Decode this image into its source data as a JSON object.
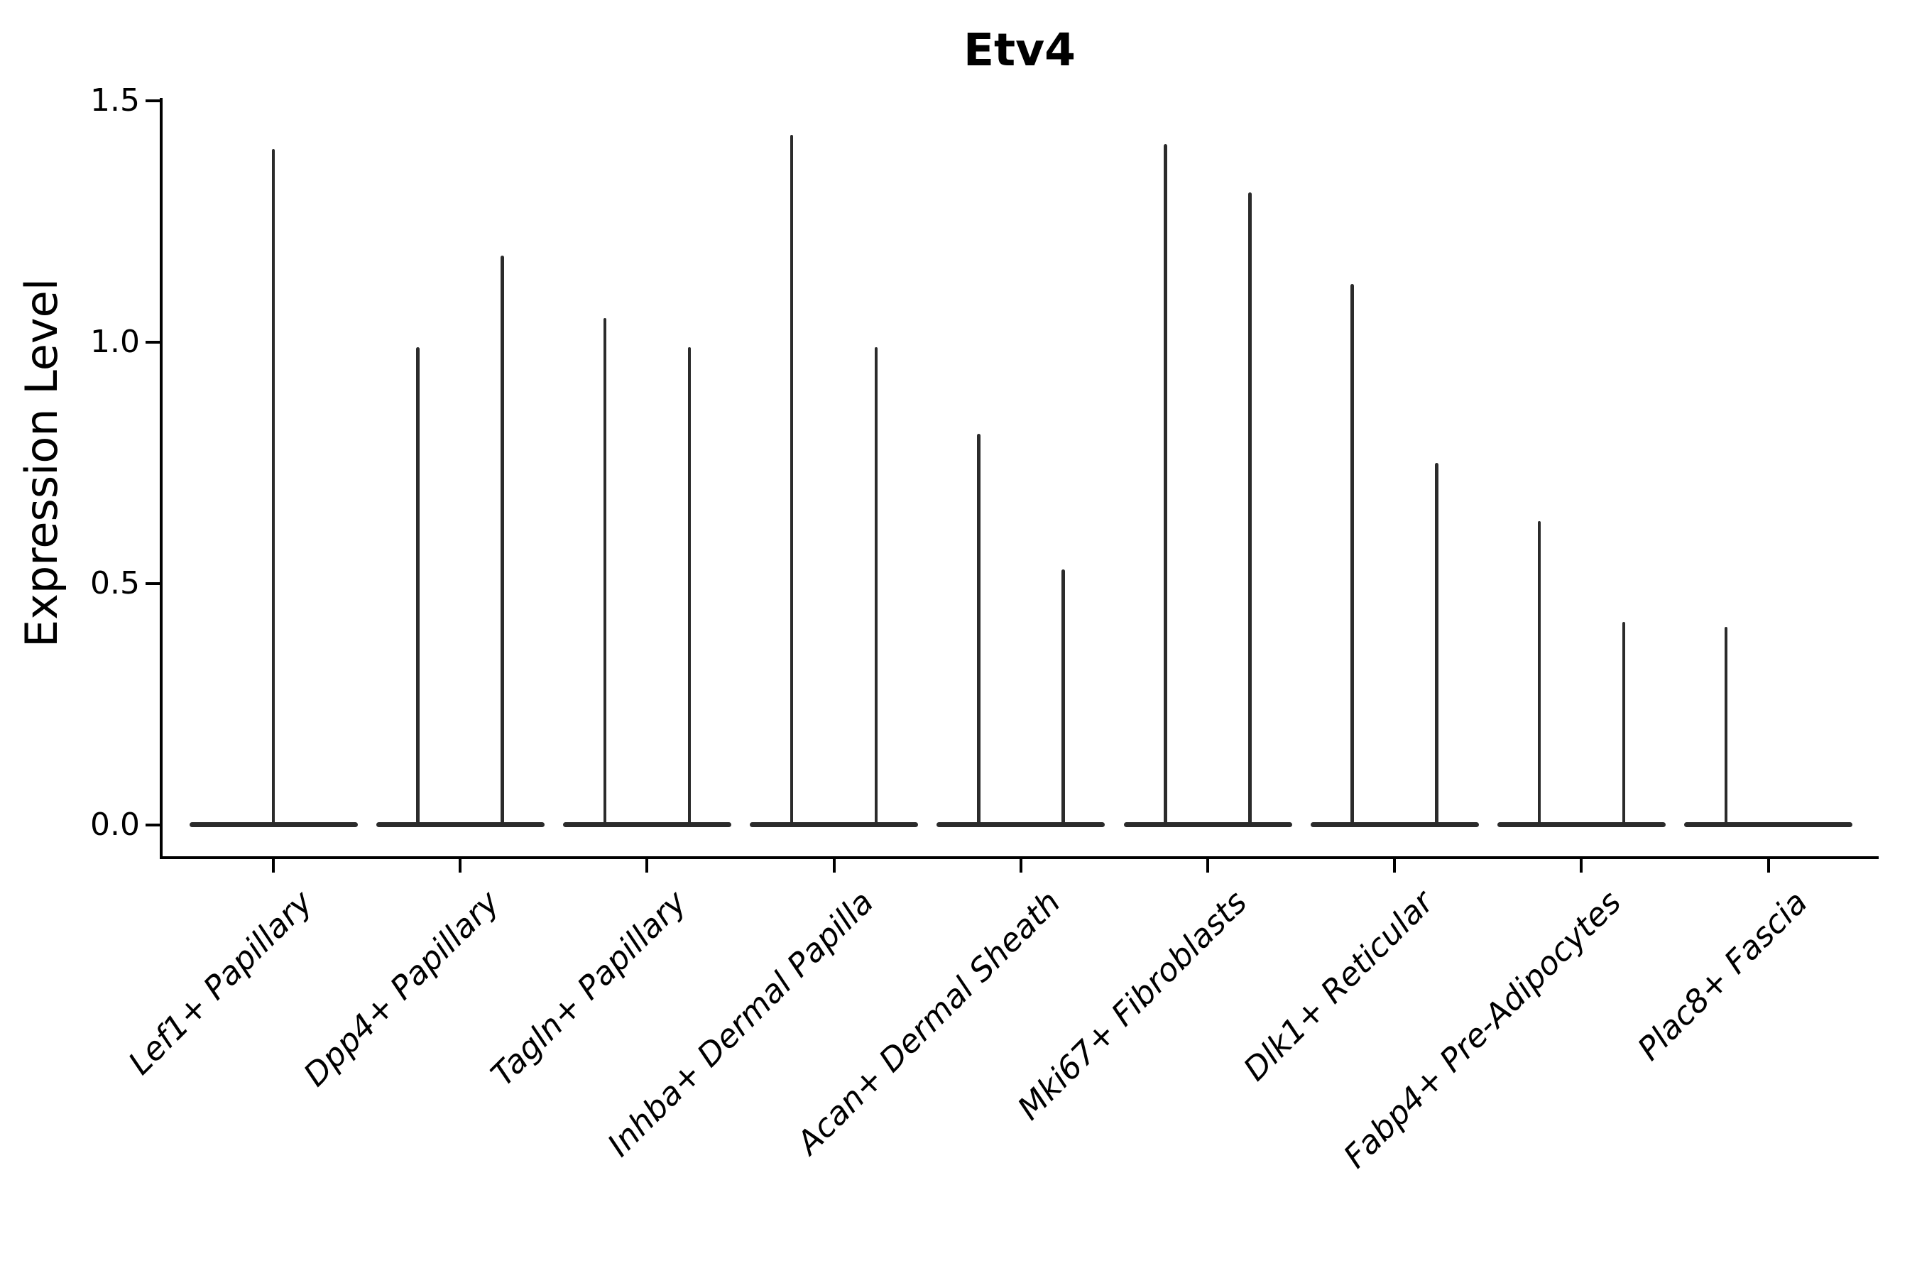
{
  "title": "Etv4",
  "y_axis": {
    "label": "Expression Level",
    "tick_labels": [
      "0.0",
      "0.5",
      "1.0",
      "1.5"
    ],
    "tick_values": [
      0.0,
      0.5,
      1.0,
      1.5
    ]
  },
  "colors": {
    "violin": "#2b2b2b",
    "axis": "#000000",
    "text": "#000000",
    "background": "#ffffff"
  },
  "chart_data": {
    "type": "violin",
    "title": "Etv4",
    "xlabel": "",
    "ylabel": "Expression Level",
    "ylim": [
      0,
      1.5
    ],
    "yticks": [
      0.0,
      0.5,
      1.0,
      1.5
    ],
    "grid": false,
    "legend": "none",
    "note": "Split violin plot (two groups per cluster). Every violin is collapsed flat at expression 0 with a thin density spike rising to its maximum expression value. Lef1+ Papillary shows one centered spike; Plac8+ Fascia shows only the left-group spike.",
    "categories": [
      {
        "label": "Lef1+ Papillary",
        "violins": [
          {
            "position": "center",
            "max": 1.4
          }
        ]
      },
      {
        "label": "Dpp4+ Papillary",
        "violins": [
          {
            "position": "left",
            "max": 0.99
          },
          {
            "position": "right",
            "max": 1.18
          }
        ]
      },
      {
        "label": "Tagln+ Papillary",
        "violins": [
          {
            "position": "left",
            "max": 1.05
          },
          {
            "position": "right",
            "max": 0.99
          }
        ]
      },
      {
        "label": "Inhba+ Dermal Papilla",
        "violins": [
          {
            "position": "left",
            "max": 1.43
          },
          {
            "position": "right",
            "max": 0.99
          }
        ]
      },
      {
        "label": "Acan+ Dermal Sheath",
        "violins": [
          {
            "position": "left",
            "max": 0.81
          },
          {
            "position": "right",
            "max": 0.53
          }
        ]
      },
      {
        "label": "Mki67+ Fibroblasts",
        "violins": [
          {
            "position": "left",
            "max": 1.41
          },
          {
            "position": "right",
            "max": 1.31
          }
        ]
      },
      {
        "label": "Dlk1+ Reticular",
        "violins": [
          {
            "position": "left",
            "max": 1.12
          },
          {
            "position": "right",
            "max": 0.75
          }
        ]
      },
      {
        "label": "Fabp4+ Pre-Adipocytes",
        "violins": [
          {
            "position": "left",
            "max": 0.63
          },
          {
            "position": "right",
            "max": 0.42
          }
        ]
      },
      {
        "label": "Plac8+ Fascia",
        "violins": [
          {
            "position": "left",
            "max": 0.41
          }
        ]
      }
    ]
  }
}
